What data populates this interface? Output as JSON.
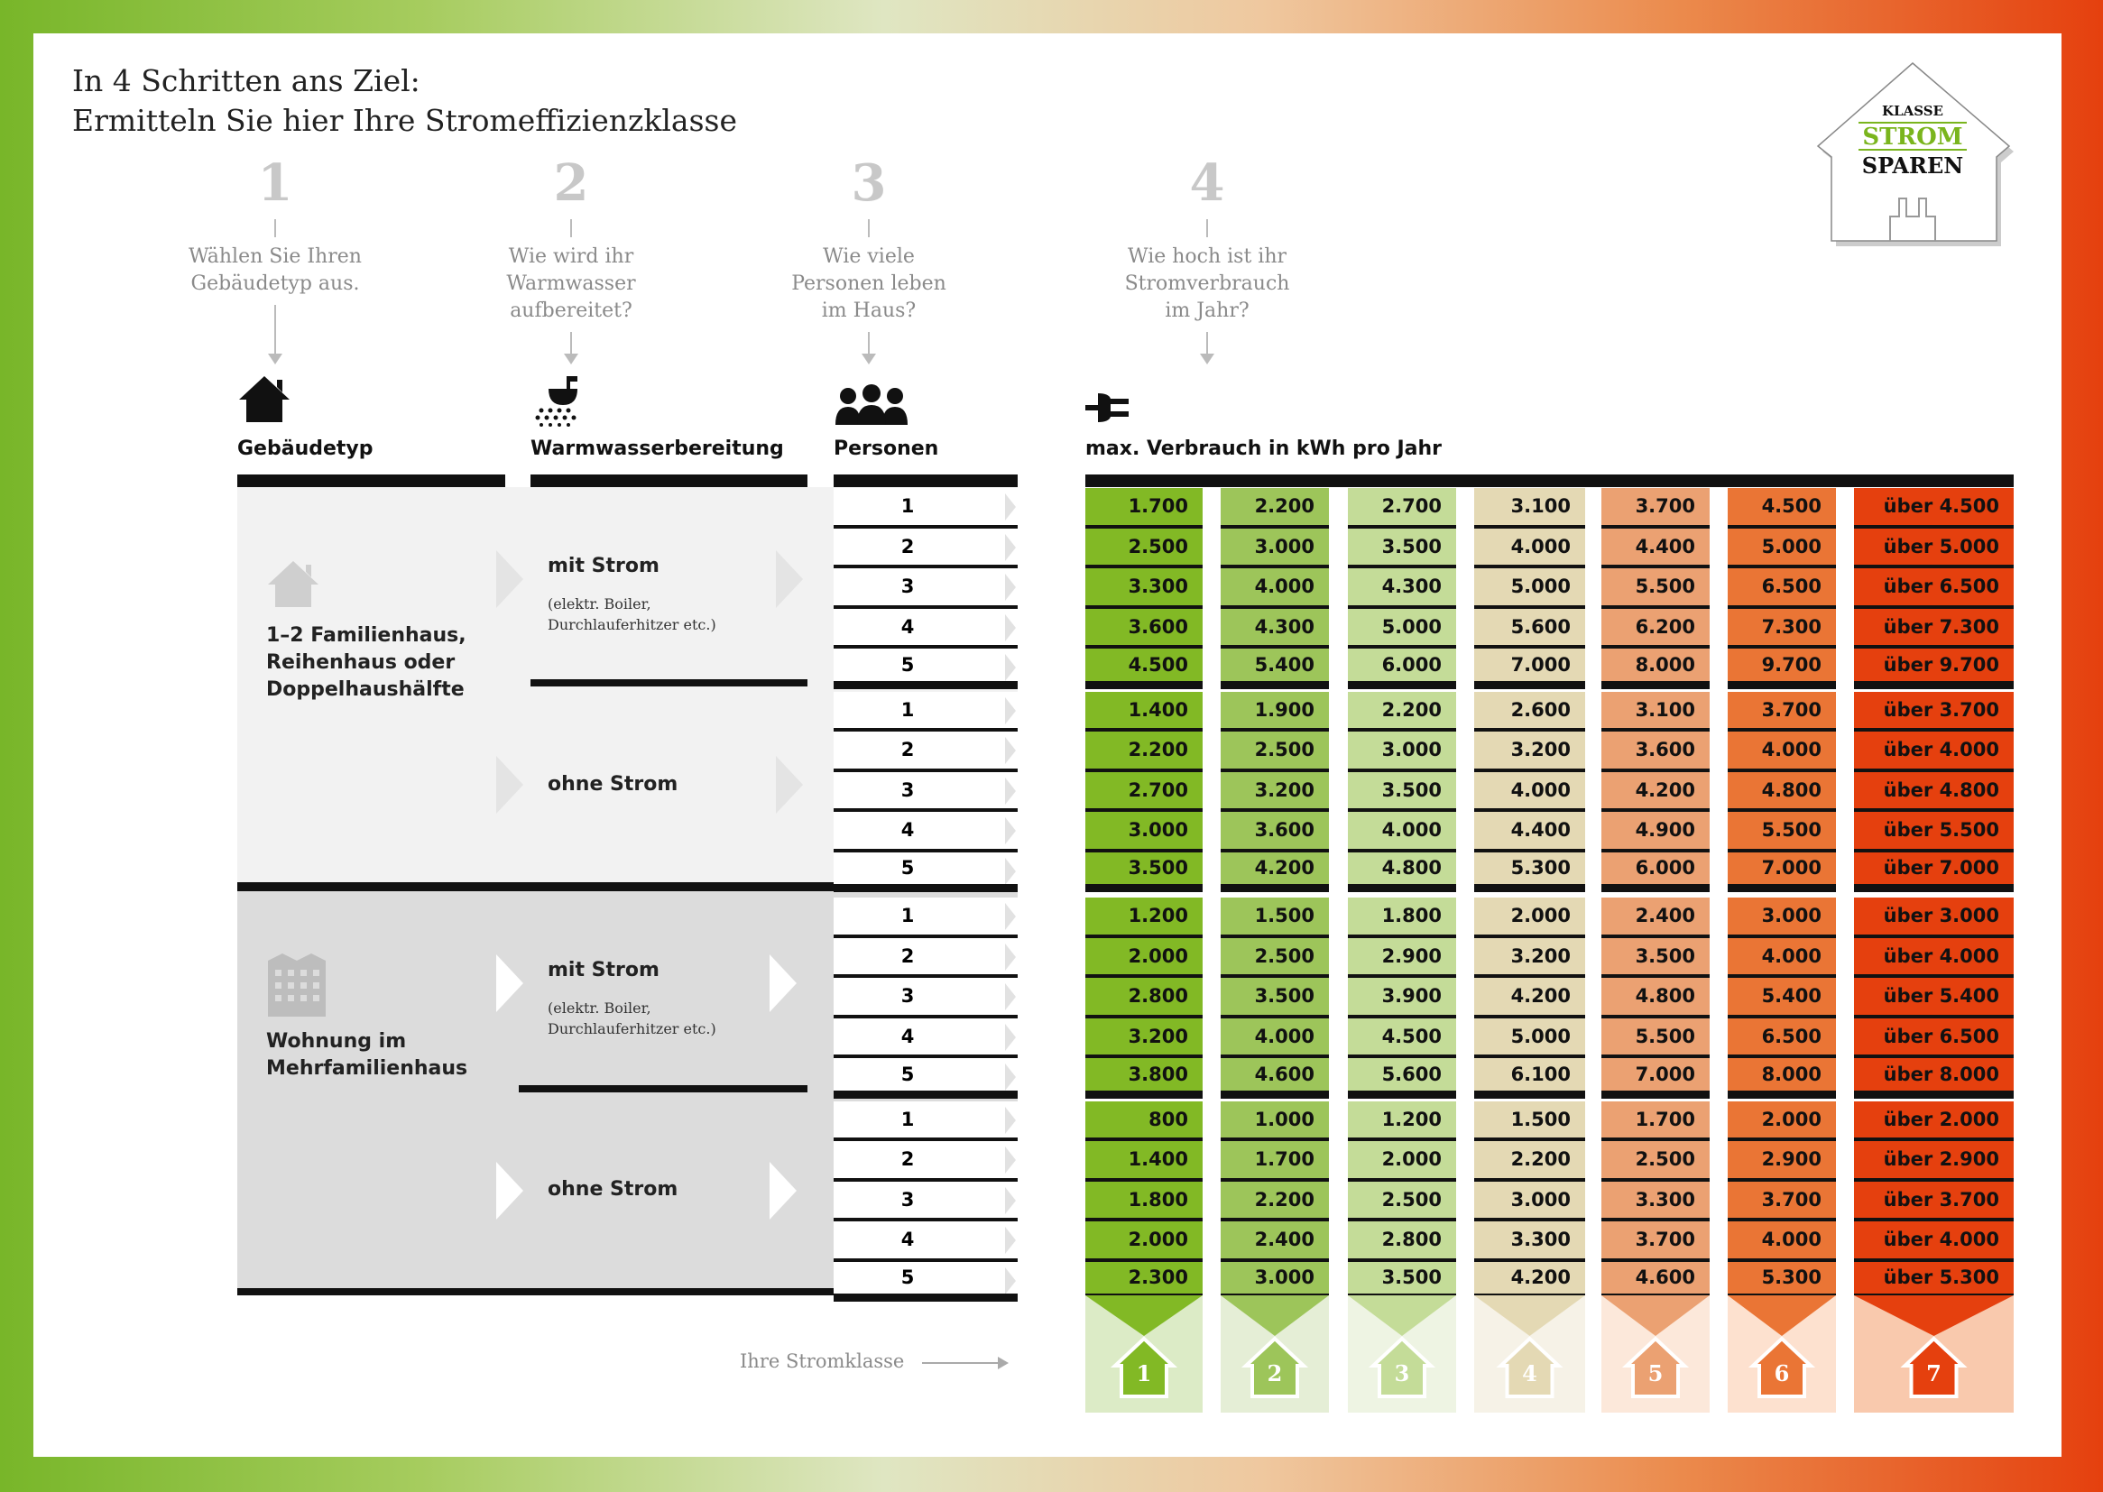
{
  "title": {
    "line1": "In 4 Schritten ans Ziel:",
    "line2": "Ermitteln Sie hier Ihre Stromeffizienzklasse"
  },
  "logo": {
    "top": "KLASSE",
    "middle": "STROM",
    "bottom": "SPAREN"
  },
  "steps": [
    {
      "num": "1",
      "text": [
        "Wählen Sie Ihren",
        "Gebäudetyp aus."
      ]
    },
    {
      "num": "2",
      "text": [
        "Wie wird ihr",
        "Warmwasser",
        "aufbereitet?"
      ]
    },
    {
      "num": "3",
      "text": [
        "Wie viele",
        "Personen leben",
        "im Haus?"
      ]
    },
    {
      "num": "4",
      "text": [
        "Wie hoch ist ihr",
        "Stromverbrauch",
        "im Jahr?"
      ]
    }
  ],
  "headers": {
    "building": "Gebäudetyp",
    "water": "Warmwasserbereitung",
    "persons": "Personen",
    "consumption": "max. Verbrauch in kWh pro Jahr"
  },
  "buildings": [
    "1–2 Familienhaus, Reihenhaus oder Doppelhaushälfte",
    "Wohnung im Mehrfamilienhaus"
  ],
  "water": {
    "with": "mit Strom",
    "with_note": "(elektr. Boiler, Durchlauferhitzer etc.)",
    "without": "ohne Strom"
  },
  "persons": [
    "1",
    "2",
    "3",
    "4",
    "5"
  ],
  "colors": [
    "#82b925",
    "#9dc55a",
    "#c4dc98",
    "#e4d9b4",
    "#eba172",
    "#ea7535",
    "#e5400e"
  ],
  "footer_colors": [
    "#dcebc6",
    "#e5eed6",
    "#eef4e3",
    "#f6f2e7",
    "#fce8da",
    "#fde1cf",
    "#f9c9ad"
  ],
  "rows": [
    [
      "1.700",
      "2.200",
      "2.700",
      "3.100",
      "3.700",
      "4.500",
      "über 4.500"
    ],
    [
      "2.500",
      "3.000",
      "3.500",
      "4.000",
      "4.400",
      "5.000",
      "über 5.000"
    ],
    [
      "3.300",
      "4.000",
      "4.300",
      "5.000",
      "5.500",
      "6.500",
      "über 6.500"
    ],
    [
      "3.600",
      "4.300",
      "5.000",
      "5.600",
      "6.200",
      "7.300",
      "über 7.300"
    ],
    [
      "4.500",
      "5.400",
      "6.000",
      "7.000",
      "8.000",
      "9.700",
      "über 9.700"
    ],
    [
      "1.400",
      "1.900",
      "2.200",
      "2.600",
      "3.100",
      "3.700",
      "über 3.700"
    ],
    [
      "2.200",
      "2.500",
      "3.000",
      "3.200",
      "3.600",
      "4.000",
      "über 4.000"
    ],
    [
      "2.700",
      "3.200",
      "3.500",
      "4.000",
      "4.200",
      "4.800",
      "über 4.800"
    ],
    [
      "3.000",
      "3.600",
      "4.000",
      "4.400",
      "4.900",
      "5.500",
      "über 5.500"
    ],
    [
      "3.500",
      "4.200",
      "4.800",
      "5.300",
      "6.000",
      "7.000",
      "über 7.000"
    ],
    [
      "1.200",
      "1.500",
      "1.800",
      "2.000",
      "2.400",
      "3.000",
      "über 3.000"
    ],
    [
      "2.000",
      "2.500",
      "2.900",
      "3.200",
      "3.500",
      "4.000",
      "über 4.000"
    ],
    [
      "2.800",
      "3.500",
      "3.900",
      "4.200",
      "4.800",
      "5.400",
      "über 5.400"
    ],
    [
      "3.200",
      "4.000",
      "4.500",
      "5.000",
      "5.500",
      "6.500",
      "über 6.500"
    ],
    [
      "3.800",
      "4.600",
      "5.600",
      "6.100",
      "7.000",
      "8.000",
      "über 8.000"
    ],
    [
      "800",
      "1.000",
      "1.200",
      "1.500",
      "1.700",
      "2.000",
      "über 2.000"
    ],
    [
      "1.400",
      "1.700",
      "2.000",
      "2.200",
      "2.500",
      "2.900",
      "über 2.900"
    ],
    [
      "1.800",
      "2.200",
      "2.500",
      "3.000",
      "3.300",
      "3.700",
      "über 3.700"
    ],
    [
      "2.000",
      "2.400",
      "2.800",
      "3.300",
      "3.700",
      "4.000",
      "über 4.000"
    ],
    [
      "2.300",
      "3.000",
      "3.500",
      "4.200",
      "4.600",
      "5.300",
      "über 5.300"
    ]
  ],
  "classes_label": "Ihre Stromklasse",
  "classes": [
    "1",
    "2",
    "3",
    "4",
    "5",
    "6",
    "7"
  ]
}
